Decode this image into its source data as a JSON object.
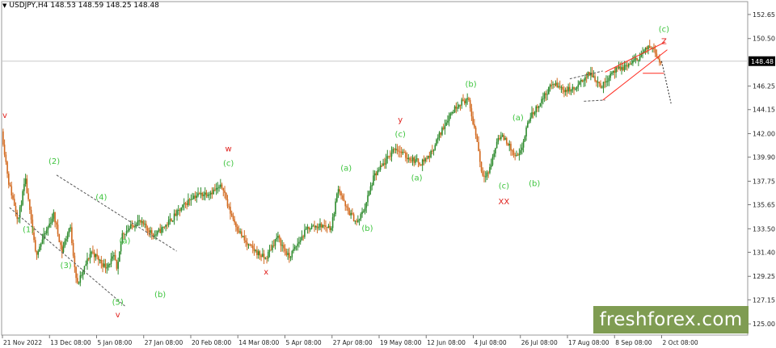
{
  "header": {
    "symbol": "USDJPY,H4",
    "ohlc": "148.53 148.59 148.25 148.48",
    "icon": "triangle-down-icon"
  },
  "logo": {
    "text": "freshforex.com",
    "color": "#7f9c52"
  },
  "colors": {
    "bull": "#2e8b2e",
    "bear": "#d2691e",
    "wave_green": "#3ec43e",
    "wave_red": "#e0201c",
    "channel": "#555555",
    "wedge": "#ff2a1f",
    "grid": "#c8c8c8"
  },
  "chart_data": {
    "type": "candlestick",
    "symbol": "USDJPY",
    "timeframe": "H4",
    "ylim": [
      124.0,
      153.8
    ],
    "y_ticks": [
      "152.65",
      "150.50",
      "148.48",
      "146.25",
      "144.15",
      "142.00",
      "139.90",
      "137.75",
      "135.65",
      "133.50",
      "131.40",
      "129.25",
      "127.15",
      "125.00"
    ],
    "current_price": "148.48",
    "x_ticks": [
      "21 Nov 2022",
      "13 Dec 08:00",
      "5 Jan 08:00",
      "27 Jan 08:00",
      "20 Feb 08:00",
      "14 Mar 08:00",
      "5 Apr 08:00",
      "27 Apr 08:00",
      "19 May 08:00",
      "12 Jun 08:00",
      "4 Jul 08:00",
      "26 Jul 08:00",
      "17 Aug 08:00",
      "8 Sep 08:00",
      "2 Oct 08:00"
    ],
    "price_path": [
      [
        0,
        142.2
      ],
      [
        0.15,
        137.6
      ],
      [
        0.35,
        134.3
      ],
      [
        0.5,
        137.9
      ],
      [
        0.72,
        131.2
      ],
      [
        0.95,
        133.3
      ],
      [
        1.1,
        134.8
      ],
      [
        1.28,
        131.5
      ],
      [
        1.45,
        133.8
      ],
      [
        1.6,
        128.4
      ],
      [
        1.9,
        131.5
      ],
      [
        2.2,
        130.1
      ],
      [
        2.4,
        131.0
      ],
      [
        2.45,
        129.5
      ],
      [
        2.55,
        133.0
      ],
      [
        2.9,
        134.2
      ],
      [
        3.25,
        132.9
      ],
      [
        3.55,
        134.1
      ],
      [
        4.05,
        136.4
      ],
      [
        4.45,
        136.8
      ],
      [
        4.7,
        137.3
      ],
      [
        4.8,
        135.5
      ],
      [
        5.0,
        133.6
      ],
      [
        5.2,
        132.1
      ],
      [
        5.45,
        131.3
      ],
      [
        5.6,
        130.8
      ],
      [
        5.85,
        132.8
      ],
      [
        6.1,
        130.9
      ],
      [
        6.5,
        133.6
      ],
      [
        6.8,
        133.8
      ],
      [
        7.0,
        133.6
      ],
      [
        7.15,
        137.3
      ],
      [
        7.3,
        135.4
      ],
      [
        7.55,
        134.0
      ],
      [
        7.7,
        135.3
      ],
      [
        7.9,
        138.1
      ],
      [
        8.2,
        139.8
      ],
      [
        8.35,
        140.8
      ],
      [
        8.6,
        139.9
      ],
      [
        8.9,
        139.4
      ],
      [
        9.1,
        140.1
      ],
      [
        9.25,
        141.5
      ],
      [
        9.5,
        143.6
      ],
      [
        9.7,
        144.7
      ],
      [
        9.9,
        145.1
      ],
      [
        10.1,
        141.3
      ],
      [
        10.2,
        138.3
      ],
      [
        10.35,
        138.6
      ],
      [
        10.55,
        141.8
      ],
      [
        10.7,
        141.5
      ],
      [
        10.9,
        139.9
      ],
      [
        11.0,
        140.0
      ],
      [
        11.2,
        143.3
      ],
      [
        11.45,
        144.9
      ],
      [
        11.7,
        146.5
      ],
      [
        11.95,
        145.9
      ],
      [
        12.2,
        146.0
      ],
      [
        12.35,
        146.9
      ],
      [
        12.5,
        147.4
      ],
      [
        12.75,
        146.2
      ],
      [
        12.95,
        147.5
      ],
      [
        13.2,
        147.9
      ],
      [
        13.45,
        148.5
      ],
      [
        13.7,
        149.6
      ],
      [
        13.85,
        149.8
      ],
      [
        13.92,
        148.8
      ],
      [
        14.0,
        148.48
      ]
    ],
    "forecast": [
      [
        14.0,
        148.48
      ],
      [
        14.2,
        144.7
      ]
    ],
    "wave_labels": [
      {
        "text": "v",
        "color": "red",
        "x": 0.05,
        "y": 143.4
      },
      {
        "text": "(1)",
        "color": "green",
        "x": 0.55,
        "y": 133.2
      },
      {
        "text": "(2)",
        "color": "green",
        "x": 1.1,
        "y": 139.3
      },
      {
        "text": "(3)",
        "color": "green",
        "x": 1.35,
        "y": 130.0
      },
      {
        "text": "(4)",
        "color": "green",
        "x": 2.1,
        "y": 136.1
      },
      {
        "text": "(5)",
        "color": "green",
        "x": 2.45,
        "y": 126.7
      },
      {
        "text": "v",
        "color": "red",
        "x": 2.45,
        "y": 125.6
      },
      {
        "text": "(a)",
        "color": "green",
        "x": 2.6,
        "y": 132.2
      },
      {
        "text": "(b)",
        "color": "green",
        "x": 3.35,
        "y": 127.4
      },
      {
        "text": "w",
        "color": "red",
        "x": 4.8,
        "y": 140.4
      },
      {
        "text": "(c)",
        "color": "green",
        "x": 4.8,
        "y": 139.1
      },
      {
        "text": "x",
        "color": "red",
        "x": 5.6,
        "y": 129.4
      },
      {
        "text": "(a)",
        "color": "green",
        "x": 7.3,
        "y": 138.7
      },
      {
        "text": "(b)",
        "color": "green",
        "x": 7.75,
        "y": 133.3
      },
      {
        "text": "y",
        "color": "red",
        "x": 8.45,
        "y": 143.0
      },
      {
        "text": "(c)",
        "color": "green",
        "x": 8.45,
        "y": 141.7
      },
      {
        "text": "(a)",
        "color": "green",
        "x": 8.8,
        "y": 137.8
      },
      {
        "text": "(b)",
        "color": "green",
        "x": 9.95,
        "y": 146.2
      },
      {
        "text": "(c)",
        "color": "green",
        "x": 10.65,
        "y": 137.1
      },
      {
        "text": "XX",
        "color": "red",
        "x": 10.65,
        "y": 135.7
      },
      {
        "text": "(a)",
        "color": "green",
        "x": 10.95,
        "y": 143.2
      },
      {
        "text": "(b)",
        "color": "green",
        "x": 11.3,
        "y": 137.3
      },
      {
        "text": "(c)",
        "color": "green",
        "x": 14.05,
        "y": 151.1
      },
      {
        "text": "Z",
        "color": "red",
        "x": 14.05,
        "y": 150.0
      }
    ],
    "channel_lines": [
      [
        [
          0.15,
          135.4
        ],
        [
          2.6,
          126.6
        ]
      ],
      [
        [
          1.15,
          138.3
        ],
        [
          3.7,
          131.5
        ]
      ],
      [
        [
          12.05,
          146.9
        ],
        [
          12.75,
          147.6
        ]
      ],
      [
        [
          12.35,
          144.9
        ],
        [
          12.8,
          145.0
        ]
      ]
    ],
    "wedge_lines": [
      [
        [
          12.75,
          145.0
        ],
        [
          14.12,
          149.5
        ]
      ],
      [
        [
          12.8,
          147.5
        ],
        [
          14.08,
          150.2
        ]
      ],
      [
        [
          13.6,
          147.4
        ],
        [
          14.05,
          147.4
        ]
      ]
    ]
  }
}
